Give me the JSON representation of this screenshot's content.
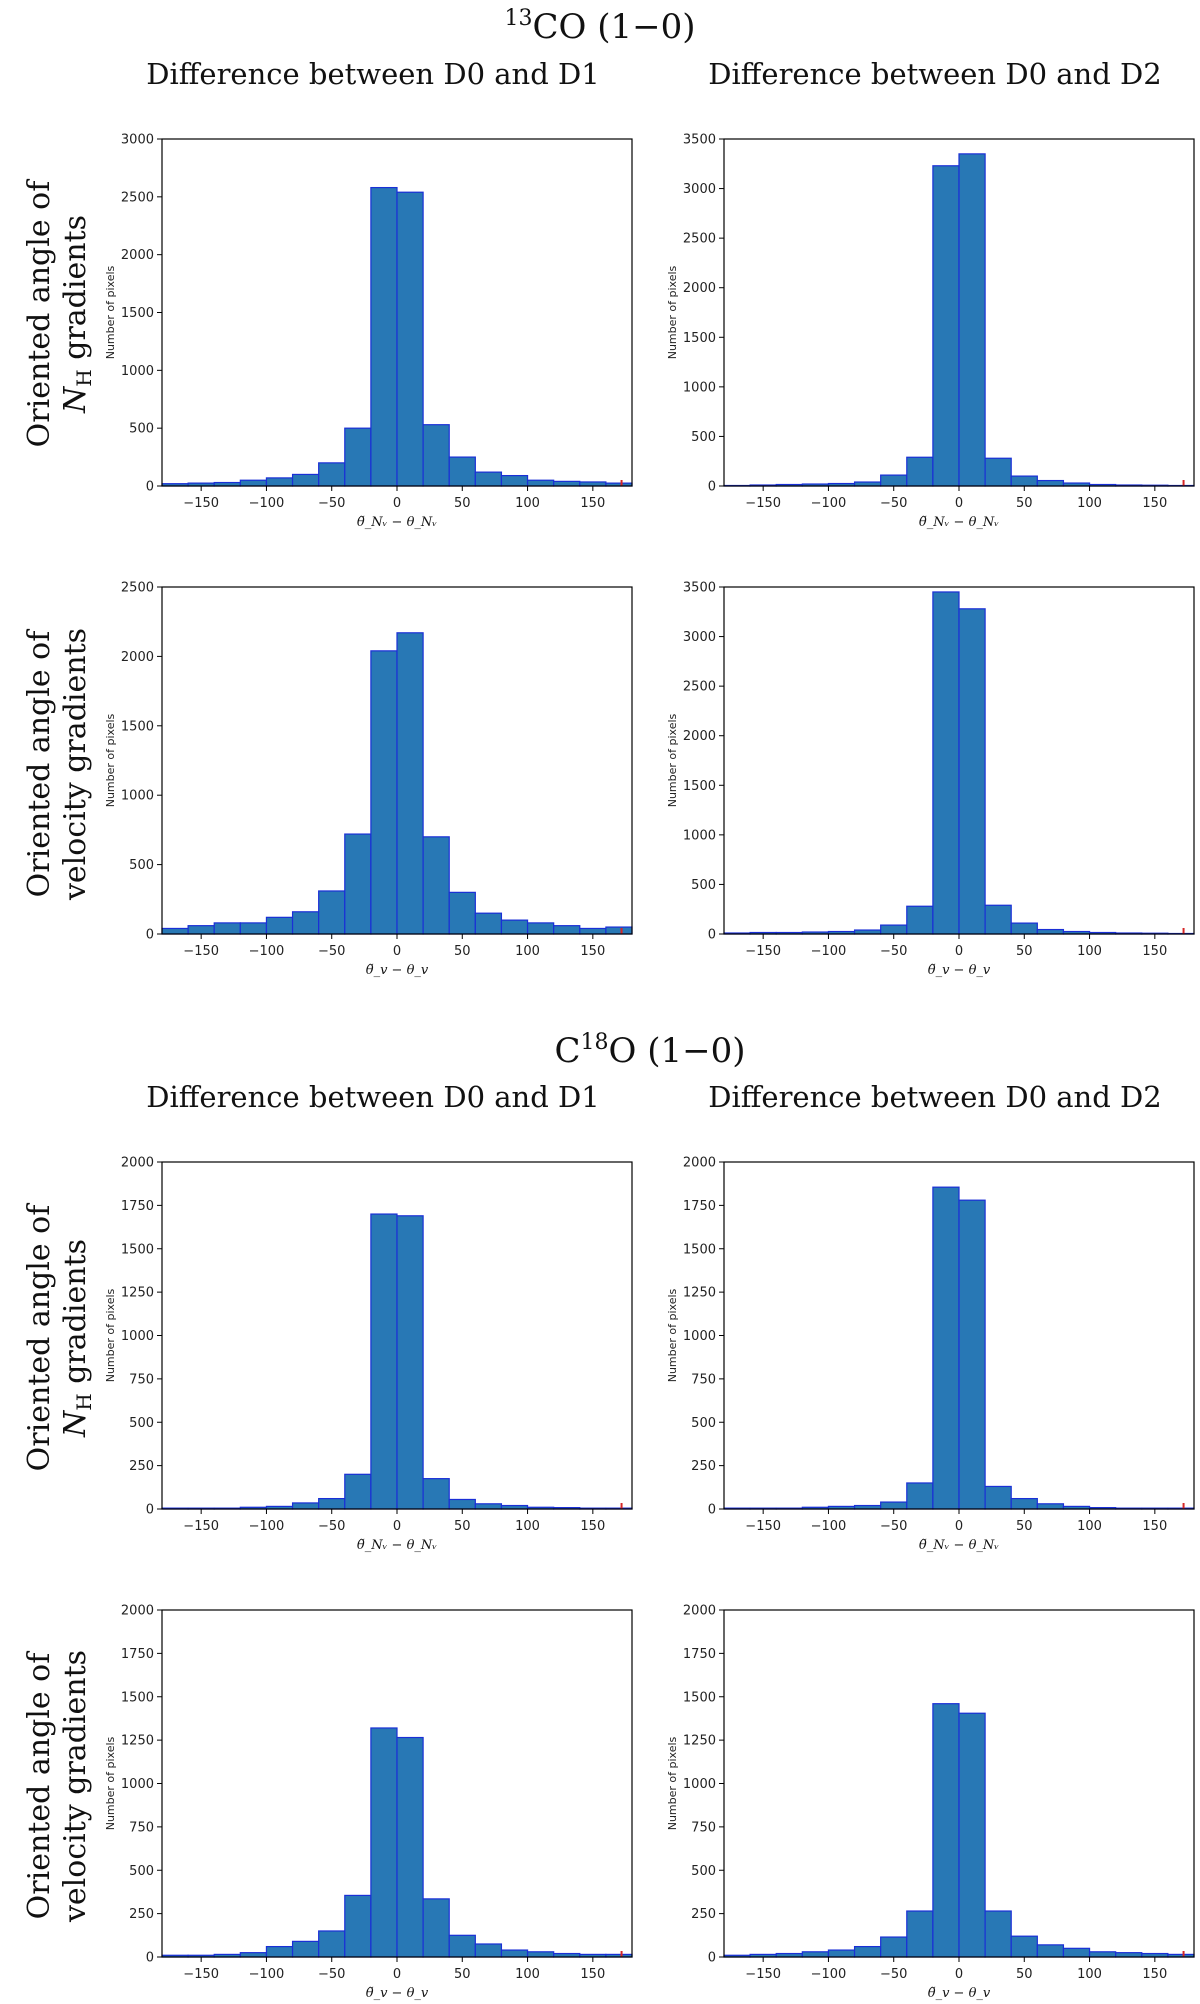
{
  "section_titles": [
    {
      "pre": "",
      "sup": "13",
      "post": "CO (1−0)"
    },
    {
      "pre": "C",
      "sup": "18",
      "post": "O (1−0)"
    }
  ],
  "column_headers": [
    "Difference between D0 and D1",
    "Difference between D0 and D2"
  ],
  "row_labels": [
    {
      "line1": "Oriented angle of",
      "line2_main": "N",
      "line2_sub": "H",
      "line2_rest": " gradients"
    },
    {
      "line1": "Oriented angle of",
      "line2": "velocity gradients"
    },
    {
      "line1": "Oriented angle of",
      "line2_main": "N",
      "line2_sub": "H",
      "line2_rest": " gradients"
    },
    {
      "line1": "Oriented angle of",
      "line2": "velocity gradients"
    }
  ],
  "colors": {
    "bar_fill": "#2878b5",
    "bar_edge": "#1a2fd6",
    "marker": "#d62728"
  },
  "chart_data": [
    {
      "type": "bar",
      "section": "13CO (1-0)",
      "column": "Difference between D0 and D1",
      "xlabel": "θ̃_Nᵥ − θ_Nᵥ",
      "xlabel_kind": "N",
      "ylabel": "Number of pixels",
      "xlim": [
        -180,
        180
      ],
      "ylim": [
        0,
        3000
      ],
      "xticks": [
        -150,
        -100,
        -50,
        0,
        50,
        100,
        150
      ],
      "yticks": [
        0,
        500,
        1000,
        1500,
        2000,
        2500,
        3000
      ],
      "bin_edges": [
        -180,
        -160,
        -140,
        -120,
        -100,
        -80,
        -60,
        -40,
        -20,
        0,
        20,
        40,
        60,
        80,
        100,
        120,
        140,
        160,
        180
      ],
      "values": [
        20,
        25,
        30,
        50,
        70,
        100,
        200,
        500,
        2580,
        2540,
        530,
        250,
        120,
        90,
        50,
        40,
        35,
        25
      ]
    },
    {
      "type": "bar",
      "section": "13CO (1-0)",
      "column": "Difference between D0 and D2",
      "xlabel": "θ̃_Nᵥ − θ_Nᵥ",
      "xlabel_kind": "N",
      "ylabel": "Number of pixels",
      "xlim": [
        -180,
        180
      ],
      "ylim": [
        0,
        3500
      ],
      "xticks": [
        -150,
        -100,
        -50,
        0,
        50,
        100,
        150
      ],
      "yticks": [
        0,
        500,
        1000,
        1500,
        2000,
        2500,
        3000,
        3500
      ],
      "bin_edges": [
        -180,
        -160,
        -140,
        -120,
        -100,
        -80,
        -60,
        -40,
        -20,
        0,
        20,
        40,
        60,
        80,
        100,
        120,
        140,
        160,
        180
      ],
      "values": [
        5,
        10,
        15,
        20,
        25,
        40,
        110,
        290,
        3230,
        3350,
        280,
        100,
        55,
        30,
        15,
        10,
        8,
        5
      ]
    },
    {
      "type": "bar",
      "section": "13CO (1-0)",
      "column": "Difference between D0 and D1",
      "xlabel": "θ̃_v − θ_v",
      "xlabel_kind": "v",
      "ylabel": "Number of pixels",
      "xlim": [
        -180,
        180
      ],
      "ylim": [
        0,
        2500
      ],
      "xticks": [
        -150,
        -100,
        -50,
        0,
        50,
        100,
        150
      ],
      "yticks": [
        0,
        500,
        1000,
        1500,
        2000,
        2500
      ],
      "bin_edges": [
        -180,
        -160,
        -140,
        -120,
        -100,
        -80,
        -60,
        -40,
        -20,
        0,
        20,
        40,
        60,
        80,
        100,
        120,
        140,
        160,
        180
      ],
      "values": [
        40,
        60,
        80,
        80,
        120,
        160,
        310,
        720,
        2040,
        2170,
        700,
        300,
        150,
        100,
        80,
        60,
        40,
        50
      ]
    },
    {
      "type": "bar",
      "section": "13CO (1-0)",
      "column": "Difference between D0 and D2",
      "xlabel": "θ̃_v − θ_v",
      "xlabel_kind": "v",
      "ylabel": "Number of pixels",
      "xlim": [
        -180,
        180
      ],
      "ylim": [
        0,
        3500
      ],
      "xticks": [
        -150,
        -100,
        -50,
        0,
        50,
        100,
        150
      ],
      "yticks": [
        0,
        500,
        1000,
        1500,
        2000,
        2500,
        3000,
        3500
      ],
      "bin_edges": [
        -180,
        -160,
        -140,
        -120,
        -100,
        -80,
        -60,
        -40,
        -20,
        0,
        20,
        40,
        60,
        80,
        100,
        120,
        140,
        160,
        180
      ],
      "values": [
        10,
        15,
        15,
        20,
        25,
        40,
        90,
        280,
        3450,
        3280,
        290,
        110,
        45,
        25,
        15,
        10,
        8,
        5
      ]
    },
    {
      "type": "bar",
      "section": "C18O (1-0)",
      "column": "Difference between D0 and D1",
      "xlabel": "θ̃_Nᵥ − θ_Nᵥ",
      "xlabel_kind": "N",
      "ylabel": "Number of pixels",
      "xlim": [
        -180,
        180
      ],
      "ylim": [
        0,
        2000
      ],
      "xticks": [
        -150,
        -100,
        -50,
        0,
        50,
        100,
        150
      ],
      "yticks": [
        0,
        250,
        500,
        750,
        1000,
        1250,
        1500,
        1750,
        2000
      ],
      "bin_edges": [
        -180,
        -160,
        -140,
        -120,
        -100,
        -80,
        -60,
        -40,
        -20,
        0,
        20,
        40,
        60,
        80,
        100,
        120,
        140,
        160,
        180
      ],
      "values": [
        5,
        5,
        5,
        10,
        15,
        35,
        60,
        200,
        1700,
        1690,
        175,
        55,
        30,
        20,
        10,
        8,
        5,
        5
      ]
    },
    {
      "type": "bar",
      "section": "C18O (1-0)",
      "column": "Difference between D0 and D2",
      "xlabel": "θ̃_Nᵥ − θ_Nᵥ",
      "xlabel_kind": "N",
      "ylabel": "Number of pixels",
      "xlim": [
        -180,
        180
      ],
      "ylim": [
        0,
        2000
      ],
      "xticks": [
        -150,
        -100,
        -50,
        0,
        50,
        100,
        150
      ],
      "yticks": [
        0,
        250,
        500,
        750,
        1000,
        1250,
        1500,
        1750,
        2000
      ],
      "bin_edges": [
        -180,
        -160,
        -140,
        -120,
        -100,
        -80,
        -60,
        -40,
        -20,
        0,
        20,
        40,
        60,
        80,
        100,
        120,
        140,
        160,
        180
      ],
      "values": [
        5,
        5,
        5,
        10,
        15,
        20,
        40,
        150,
        1855,
        1780,
        130,
        60,
        30,
        15,
        8,
        5,
        5,
        5
      ]
    },
    {
      "type": "bar",
      "section": "C18O (1-0)",
      "column": "Difference between D0 and D1",
      "xlabel": "θ̃_v − θ_v",
      "xlabel_kind": "v",
      "ylabel": "Number of pixels",
      "xlim": [
        -180,
        180
      ],
      "ylim": [
        0,
        2000
      ],
      "xticks": [
        -150,
        -100,
        -50,
        0,
        50,
        100,
        150
      ],
      "yticks": [
        0,
        250,
        500,
        750,
        1000,
        1250,
        1500,
        1750,
        2000
      ],
      "bin_edges": [
        -180,
        -160,
        -140,
        -120,
        -100,
        -80,
        -60,
        -40,
        -20,
        0,
        20,
        40,
        60,
        80,
        100,
        120,
        140,
        160,
        180
      ],
      "values": [
        10,
        10,
        15,
        25,
        60,
        90,
        150,
        355,
        1320,
        1265,
        335,
        125,
        75,
        40,
        30,
        20,
        15,
        15
      ]
    },
    {
      "type": "bar",
      "section": "C18O (1-0)",
      "column": "Difference between D0 and D2",
      "xlabel": "θ̃_v − θ_v",
      "xlabel_kind": "v",
      "ylabel": "Number of pixels",
      "xlim": [
        -180,
        180
      ],
      "ylim": [
        0,
        2000
      ],
      "xticks": [
        -150,
        -100,
        -50,
        0,
        50,
        100,
        150
      ],
      "yticks": [
        0,
        250,
        500,
        750,
        1000,
        1250,
        1500,
        1750,
        2000
      ],
      "bin_edges": [
        -180,
        -160,
        -140,
        -120,
        -100,
        -80,
        -60,
        -40,
        -20,
        0,
        20,
        40,
        60,
        80,
        100,
        120,
        140,
        160,
        180
      ],
      "values": [
        10,
        15,
        20,
        30,
        40,
        60,
        115,
        265,
        1460,
        1405,
        265,
        120,
        70,
        50,
        30,
        25,
        20,
        15
      ]
    }
  ]
}
